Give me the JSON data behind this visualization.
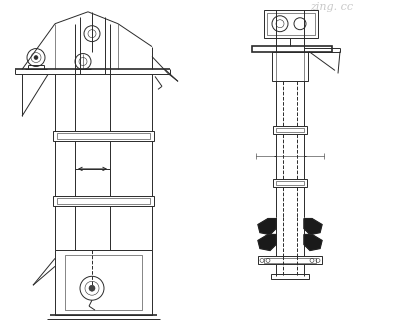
{
  "bg_color": "#ffffff",
  "lc": "#2a2a2a",
  "lc_light": "#666666",
  "watermark": "zing. cc",
  "lw": 0.7,
  "lw_thin": 0.4,
  "lw_thick": 1.2
}
